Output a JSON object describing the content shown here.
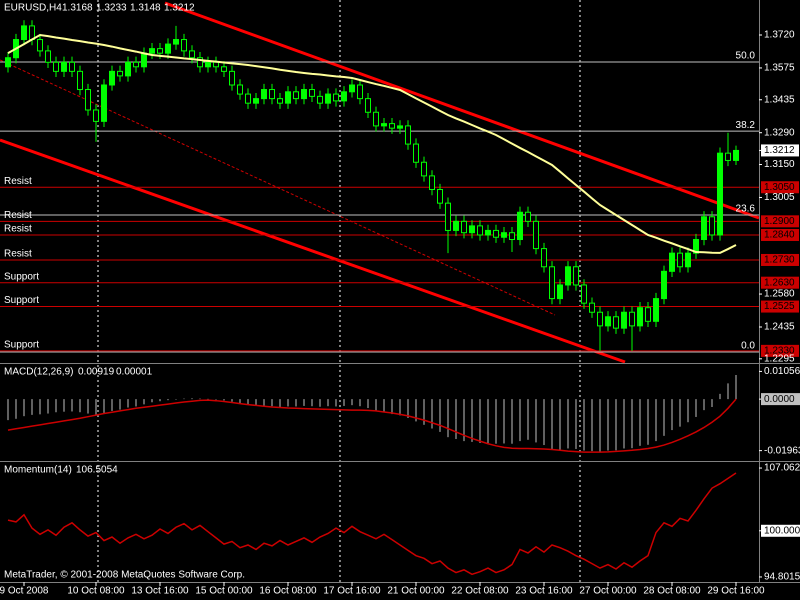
{
  "footer": "MetaTrader, © 2001-2008 MetaQuotes Software Corp.",
  "chart_data": [
    {
      "type": "candlestick",
      "title": "EURUSD,H4",
      "open": [
        1.358,
        1.362,
        1.37,
        1.376,
        1.37,
        1.365,
        1.36,
        1.356,
        1.36,
        1.356,
        1.348,
        1.339,
        1.334,
        1.35,
        1.356,
        1.354,
        1.36,
        1.358,
        1.364,
        1.366,
        1.364,
        1.368,
        1.37,
        1.365,
        1.362,
        1.358,
        1.36,
        1.358,
        1.356,
        1.35,
        1.346,
        1.342,
        1.344,
        1.348,
        1.344,
        1.342,
        1.347,
        1.344,
        1.348,
        1.345,
        1.342,
        1.346,
        1.343,
        1.347,
        1.35,
        1.344,
        1.338,
        1.332,
        1.333,
        1.331,
        1.332,
        1.324,
        1.316,
        1.31,
        1.304,
        1.298,
        1.286,
        1.29,
        1.285,
        1.288,
        1.284,
        1.286,
        1.283,
        1.285,
        1.282,
        1.294,
        1.29,
        1.278,
        1.27,
        1.256,
        1.262,
        1.27,
        1.262,
        1.254,
        1.25,
        1.244,
        1.248,
        1.243,
        1.25,
        1.244,
        1.252,
        1.246,
        1.256,
        1.268,
        1.276,
        1.27,
        1.276,
        1.282,
        1.292,
        1.284,
        1.32,
        1.3168
      ],
      "high": [
        1.3645,
        1.3725,
        1.3785,
        1.3785,
        1.3725,
        1.3675,
        1.3625,
        1.3625,
        1.3625,
        1.3585,
        1.3505,
        1.3415,
        1.3525,
        1.3585,
        1.3585,
        1.3625,
        1.3625,
        1.3665,
        1.3685,
        1.3685,
        1.3705,
        1.376,
        1.3725,
        1.3675,
        1.3645,
        1.3625,
        1.3625,
        1.3605,
        1.3585,
        1.3525,
        1.3485,
        1.3465,
        1.3505,
        1.3505,
        1.3465,
        1.3495,
        1.3495,
        1.3505,
        1.3505,
        1.3475,
        1.3485,
        1.3485,
        1.3495,
        1.3525,
        1.3525,
        1.3465,
        1.3405,
        1.3355,
        1.3355,
        1.3345,
        1.3345,
        1.3265,
        1.3185,
        1.3125,
        1.3065,
        1.3005,
        1.2925,
        1.2925,
        1.2905,
        1.2905,
        1.2885,
        1.2885,
        1.2875,
        1.2875,
        1.2965,
        1.2965,
        1.2925,
        1.2805,
        1.2725,
        1.2645,
        1.2725,
        1.2725,
        1.2645,
        1.2565,
        1.2525,
        1.2505,
        1.2505,
        1.2525,
        1.2525,
        1.2545,
        1.2545,
        1.2585,
        1.2705,
        1.2785,
        1.2785,
        1.2785,
        1.2845,
        1.2945,
        1.2945,
        1.3225,
        1.329,
        1.3233
      ],
      "low": [
        1.3555,
        1.3595,
        1.3675,
        1.3675,
        1.3625,
        1.3575,
        1.3535,
        1.3535,
        1.3535,
        1.3455,
        1.3365,
        1.325,
        1.3315,
        1.3475,
        1.3515,
        1.3515,
        1.3555,
        1.3555,
        1.3615,
        1.3615,
        1.3615,
        1.3655,
        1.3625,
        1.3595,
        1.3555,
        1.3555,
        1.3555,
        1.3535,
        1.3475,
        1.3435,
        1.3395,
        1.3395,
        1.3415,
        1.3415,
        1.3395,
        1.3395,
        1.3415,
        1.3415,
        1.3425,
        1.3395,
        1.3395,
        1.3405,
        1.3405,
        1.3445,
        1.3415,
        1.3355,
        1.3295,
        1.3295,
        1.3285,
        1.3285,
        1.3215,
        1.3135,
        1.3075,
        1.3015,
        1.2955,
        1.276,
        1.2835,
        1.2825,
        1.2825,
        1.2815,
        1.2815,
        1.2805,
        1.2805,
        1.2765,
        1.2795,
        1.2875,
        1.2755,
        1.2675,
        1.2535,
        1.2535,
        1.2595,
        1.2595,
        1.2515,
        1.2475,
        1.233,
        1.2415,
        1.2405,
        1.2405,
        1.233,
        1.2415,
        1.2435,
        1.2435,
        1.2535,
        1.2655,
        1.2675,
        1.2675,
        1.2735,
        1.2795,
        1.2815,
        1.2815,
        1.3143,
        1.3148
      ],
      "close": [
        1.362,
        1.37,
        1.376,
        1.37,
        1.365,
        1.36,
        1.356,
        1.36,
        1.356,
        1.348,
        1.339,
        1.334,
        1.35,
        1.356,
        1.354,
        1.36,
        1.358,
        1.364,
        1.366,
        1.364,
        1.368,
        1.37,
        1.365,
        1.362,
        1.358,
        1.36,
        1.358,
        1.356,
        1.35,
        1.346,
        1.342,
        1.344,
        1.348,
        1.344,
        1.342,
        1.347,
        1.344,
        1.348,
        1.345,
        1.342,
        1.346,
        1.343,
        1.347,
        1.35,
        1.344,
        1.338,
        1.332,
        1.333,
        1.331,
        1.332,
        1.324,
        1.316,
        1.31,
        1.304,
        1.298,
        1.286,
        1.29,
        1.285,
        1.288,
        1.284,
        1.286,
        1.283,
        1.285,
        1.282,
        1.294,
        1.29,
        1.278,
        1.27,
        1.256,
        1.262,
        1.27,
        1.262,
        1.254,
        1.25,
        1.244,
        1.248,
        1.243,
        1.25,
        1.244,
        1.252,
        1.246,
        1.256,
        1.268,
        1.276,
        1.27,
        1.276,
        1.282,
        1.292,
        1.284,
        1.32,
        1.3168,
        1.3212
      ],
      "up_color": "#00ff00",
      "down_color": "#000000",
      "wick_color": "#00ff00",
      "ma": {
        "color": "#ffff99",
        "values": [
          1.364,
          1.366,
          1.368,
          1.37,
          1.372,
          1.3715,
          1.3709,
          1.3704,
          1.3698,
          1.3693,
          1.3687,
          1.3682,
          1.3676,
          1.3669,
          1.3661,
          1.3654,
          1.3647,
          1.3639,
          1.3632,
          1.3628,
          1.3625,
          1.3621,
          1.3617,
          1.3614,
          1.361,
          1.3606,
          1.3603,
          1.3599,
          1.3595,
          1.3592,
          1.3588,
          1.3583,
          1.3578,
          1.3573,
          1.3567,
          1.3562,
          1.3557,
          1.3553,
          1.3549,
          1.3546,
          1.3542,
          1.3538,
          1.3535,
          1.3531,
          1.3522,
          1.3513,
          1.3504,
          1.3496,
          1.3487,
          1.3478,
          1.346,
          1.3441,
          1.3423,
          1.3405,
          1.3386,
          1.3368,
          1.3353,
          1.3339,
          1.3324,
          1.3309,
          1.3295,
          1.328,
          1.3261,
          1.3242,
          1.3223,
          1.3205,
          1.3186,
          1.3167,
          1.3148,
          1.3119,
          1.3089,
          1.306,
          1.3031,
          1.3001,
          1.2972,
          1.295,
          1.2928,
          1.2906,
          1.2884,
          1.2862,
          1.284,
          1.2828,
          1.2815,
          1.2803,
          1.279,
          1.2778,
          1.2765,
          1.2764,
          1.2762,
          1.2761,
          1.2778,
          1.2796
        ]
      },
      "level_color": "#cc0000",
      "levels": [
        {
          "name": "Resist",
          "value": 1.305,
          "label": "1.3050"
        },
        {
          "name": "Resist",
          "value": 1.29,
          "label": "1.2900"
        },
        {
          "name": "Resist",
          "value": 1.284,
          "label": "1.2840"
        },
        {
          "name": "Resist",
          "value": 1.273,
          "label": "1.2730"
        },
        {
          "name": "Support",
          "value": 1.263,
          "label": "1.2630"
        },
        {
          "name": "Support",
          "value": 1.2525,
          "label": "1.2525"
        },
        {
          "name": "Support",
          "value": 1.233,
          "label": "1.2330"
        }
      ],
      "fibo_color": "#c0c0c0",
      "fibo": [
        {
          "label": "50.0",
          "value": 1.3601
        },
        {
          "label": "38.2",
          "value": 1.3297
        },
        {
          "label": "23.6",
          "value": 1.2928
        },
        {
          "label": "0.0",
          "value": 1.2325
        }
      ],
      "ylim": [
        1.2281,
        1.3874
      ],
      "yticks": [
        {
          "value": 1.372,
          "label": "1.3720"
        },
        1.3575,
        1.3435,
        {
          "value": 1.329,
          "label": "1.3290"
        },
        {
          "value": 1.315,
          "label": "1.3150"
        },
        1.3005,
        {
          "value": 1.258,
          "label": "1.2580"
        },
        1.2435,
        1.2295
      ]
    },
    {
      "type": "macd",
      "title": "MACD(12,26,9)",
      "color": "#c0c0c0",
      "values": [
        -0.008,
        -0.0075,
        -0.0065,
        -0.006,
        -0.0058,
        -0.0055,
        -0.005,
        -0.0048,
        -0.0047,
        -0.005,
        -0.0055,
        -0.006,
        -0.0055,
        -0.0045,
        -0.004,
        -0.0032,
        -0.0028,
        -0.002,
        -0.0012,
        -0.0008,
        -0.0004,
        0.0,
        0.0002,
        0.0003,
        0.0002,
        0.0001,
        -0.0002,
        -0.0005,
        -0.001,
        -0.0016,
        -0.0022,
        -0.0025,
        -0.0025,
        -0.0027,
        -0.003,
        -0.0028,
        -0.0028,
        -0.0026,
        -0.0027,
        -0.0029,
        -0.0027,
        -0.0028,
        -0.0026,
        -0.0023,
        -0.0027,
        -0.0034,
        -0.0043,
        -0.005,
        -0.0057,
        -0.0062,
        -0.0072,
        -0.0085,
        -0.0098,
        -0.0112,
        -0.0125,
        -0.0145,
        -0.0152,
        -0.016,
        -0.0163,
        -0.0167,
        -0.0168,
        -0.017,
        -0.0169,
        -0.017,
        -0.016,
        -0.0155,
        -0.0165,
        -0.0175,
        -0.019,
        -0.0193,
        -0.0188,
        -0.019,
        -0.0196,
        -0.0198,
        -0.02,
        -0.0196,
        -0.0195,
        -0.0188,
        -0.0187,
        -0.0178,
        -0.0174,
        -0.016,
        -0.014,
        -0.0118,
        -0.0105,
        -0.0088,
        -0.0068,
        -0.0042,
        -0.003,
        0.002,
        0.006,
        0.00919
      ],
      "signal": {
        "color": "#cc0000",
        "values": [
          -0.0118,
          -0.0113,
          -0.0108,
          -0.0103,
          -0.0098,
          -0.0093,
          -0.0088,
          -0.0083,
          -0.0078,
          -0.0073,
          -0.0067,
          -0.0061,
          -0.0055,
          -0.005,
          -0.0045,
          -0.004,
          -0.0035,
          -0.0031,
          -0.0027,
          -0.0023,
          -0.0019,
          -0.0015,
          -0.0011,
          -0.0008,
          -0.0005,
          -0.0004,
          -0.0006,
          -0.0009,
          -0.0013,
          -0.0017,
          -0.0021,
          -0.0024,
          -0.0027,
          -0.003,
          -0.0032,
          -0.0034,
          -0.0035,
          -0.0036,
          -0.0037,
          -0.0038,
          -0.0039,
          -0.004,
          -0.0041,
          -0.0042,
          -0.0042,
          -0.0043,
          -0.0045,
          -0.0049,
          -0.0053,
          -0.0058,
          -0.0064,
          -0.0072,
          -0.008,
          -0.009,
          -0.01,
          -0.0112,
          -0.0125,
          -0.0138,
          -0.015,
          -0.016,
          -0.017,
          -0.0178,
          -0.0184,
          -0.0187,
          -0.0188,
          -0.0188,
          -0.0189,
          -0.019,
          -0.0192,
          -0.0195,
          -0.0198,
          -0.02,
          -0.0202,
          -0.0202,
          -0.0202,
          -0.0201,
          -0.0199,
          -0.0197,
          -0.0195,
          -0.0192,
          -0.0188,
          -0.0183,
          -0.0175,
          -0.0165,
          -0.0153,
          -0.014,
          -0.0125,
          -0.0108,
          -0.0088,
          -0.0065,
          -0.0035,
          1e-05
        ]
      },
      "ylim": [
        -0.0232,
        0.013
      ],
      "yticks": [
        0.01056,
        {
          "value": 0,
          "label": "0.0000"
        },
        -0.01963
      ]
    },
    {
      "type": "line",
      "title": "Momentum(14)",
      "color": "#cc0000",
      "values": [
        101.2,
        101.0,
        101.8,
        100.3,
        99.6,
        100.1,
        99.5,
        100.4,
        100.9,
        100.1,
        99.4,
        99.8,
        98.9,
        99.3,
        98.6,
        99.2,
        99.6,
        99.1,
        99.5,
        100.2,
        99.7,
        100.4,
        100.8,
        100.1,
        100.6,
        99.9,
        99.2,
        98.5,
        98.8,
        98.1,
        98.4,
        97.9,
        98.6,
        98.3,
        98.9,
        98.4,
        98.8,
        99.2,
        98.7,
        99.3,
        99.7,
        100.3,
        99.8,
        100.5,
        99.9,
        99.5,
        99.1,
        99.6,
        99.0,
        98.4,
        97.8,
        97.2,
        96.9,
        96.3,
        96.6,
        95.8,
        95.3,
        95.6,
        95.1,
        95.4,
        95.8,
        95.3,
        95.6,
        96.2,
        97.9,
        97.5,
        98.2,
        97.6,
        98.4,
        98.1,
        97.7,
        97.2,
        96.8,
        96.3,
        95.8,
        96.2,
        95.7,
        96.4,
        95.9,
        96.6,
        97.2,
        99.8,
        100.9,
        100.5,
        101.4,
        101.1,
        102.3,
        103.6,
        104.8,
        105.3,
        105.9,
        106.5054
      ],
      "categories": [
        null,
        null,
        "9 Oct 2008",
        null,
        null,
        null,
        null,
        null,
        null,
        null,
        null,
        "10 Oct 08:00",
        null,
        null,
        null,
        null,
        null,
        null,
        null,
        "13 Oct 16:00",
        null,
        null,
        null,
        null,
        null,
        null,
        null,
        "15 Oct 00:00",
        null,
        null,
        null,
        null,
        null,
        null,
        null,
        "16 Oct 08:00",
        null,
        null,
        null,
        null,
        null,
        null,
        null,
        "17 Oct 16:00",
        null,
        null,
        null,
        null,
        null,
        null,
        null,
        "21 Oct 00:00",
        null,
        null,
        null,
        null,
        null,
        null,
        null,
        "22 Oct 08:00",
        null,
        null,
        null,
        null,
        null,
        null,
        null,
        "23 Oct 16:00",
        null,
        null,
        null,
        null,
        null,
        null,
        null,
        "27 Oct 00:00",
        null,
        null,
        null,
        null,
        null,
        null,
        null,
        "28 Oct 08:00",
        null,
        null,
        null,
        null,
        null,
        null,
        null,
        "29 Oct 16:00"
      ],
      "ylim": [
        94.46,
        107.63
      ],
      "yticks": [
        107.0626,
        {
          "value": 100,
          "label": "100.0000"
        },
        94.8015
      ]
    }
  ]
}
